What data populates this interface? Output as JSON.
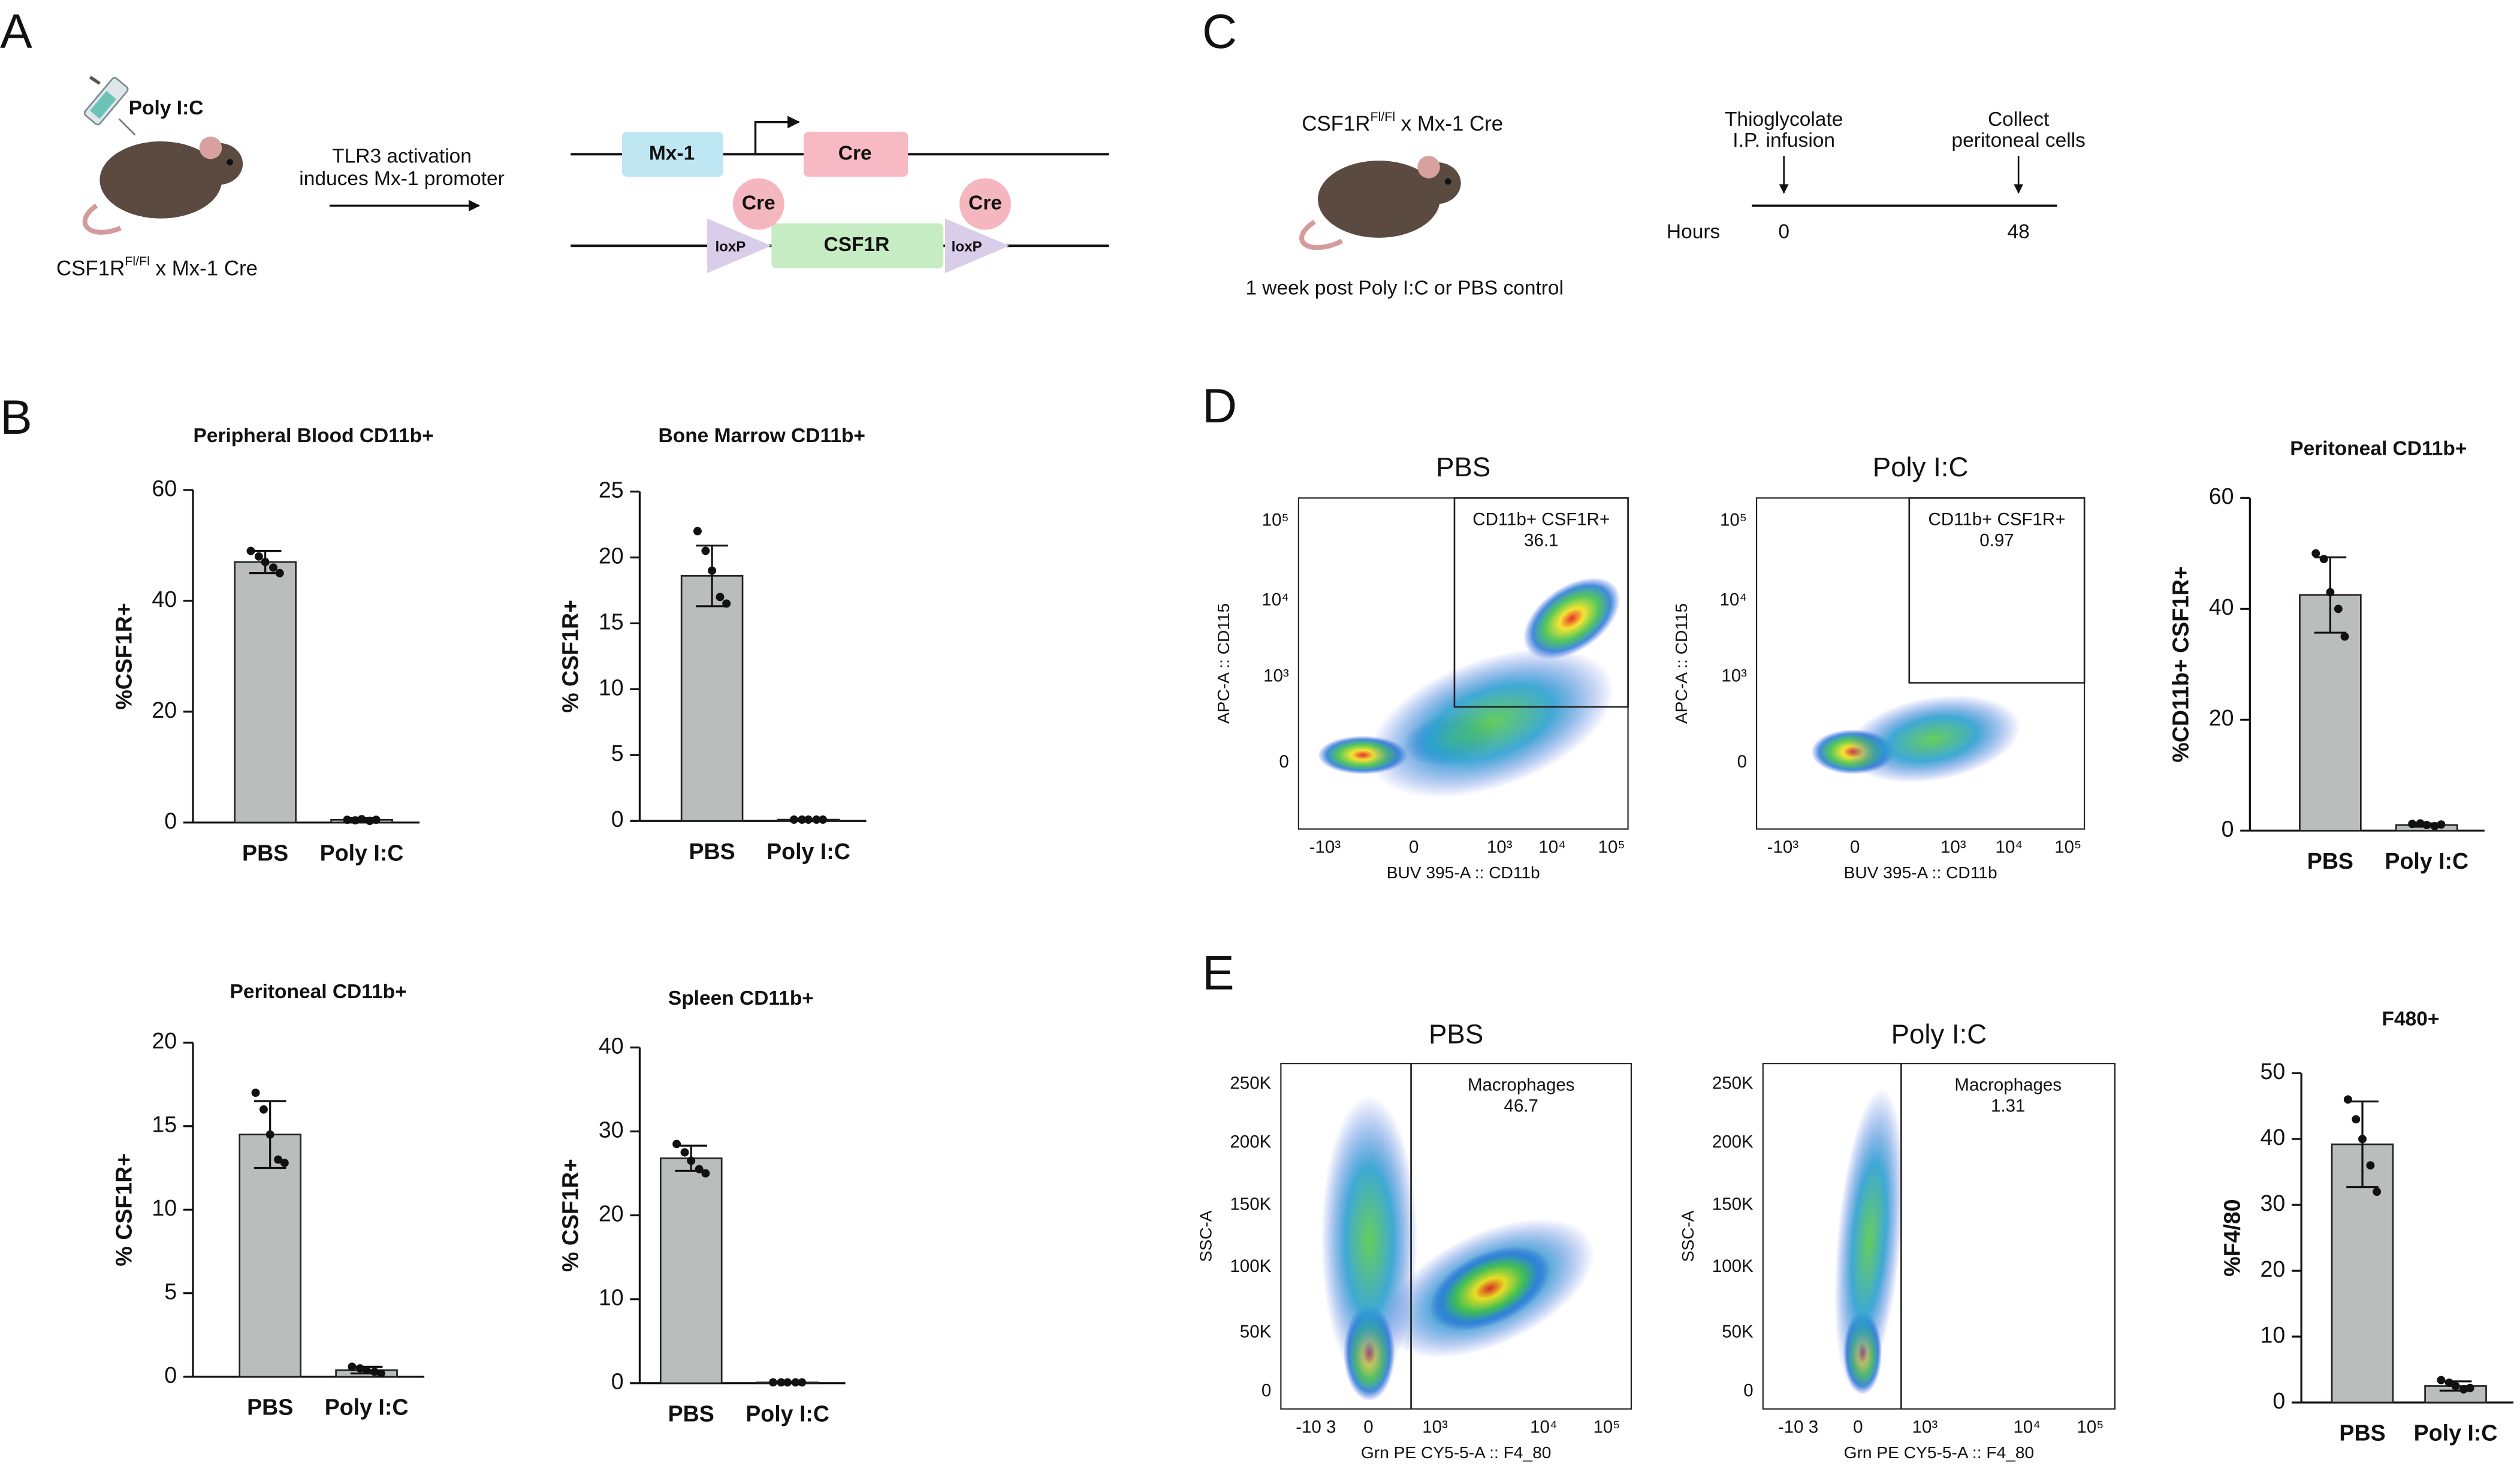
{
  "panel_labels": [
    "A",
    "B",
    "C",
    "D",
    "E"
  ],
  "panel_a": {
    "injection": "Poly I:C",
    "mouse_label": {
      "gene": "CSF1R",
      "superscript": "Fl/Fl",
      "rest": " x Mx-1 Cre"
    },
    "arrow_text": [
      "TLR3 activation",
      "induces Mx-1 promoter"
    ],
    "promoter": "Mx-1",
    "cre_gene": "Cre",
    "cre_proteins": [
      "Cre",
      "Cre"
    ],
    "loxp": [
      "loxP",
      "loxP"
    ],
    "target_gene": "CSF1R"
  },
  "panel_c": {
    "mouse_label": {
      "gene": "CSF1R",
      "superscript": "Fl/Fl",
      "rest": " x Mx-1 Cre"
    },
    "note": "1 week post Poly I:C  or PBS control",
    "timeline_label": "Hours",
    "events": [
      {
        "text": [
          "Thioglycolate",
          "I.P. infusion"
        ],
        "time": "0"
      },
      {
        "text": [
          "Collect",
          "peritoneal cells"
        ],
        "time": "48"
      }
    ]
  },
  "flow_plots": [
    {
      "title": "PBS",
      "gate_name": "CD11b+ CSF1R+",
      "gate_value": "36.1",
      "y_label": "APC-A :: CD115",
      "x_label": "BUV 395-A :: CD11b",
      "yticks": [
        "10⁵",
        "10⁴",
        "10³",
        "0"
      ],
      "xticks": [
        "-10³",
        "0",
        "10³",
        "10⁴",
        "10⁵"
      ]
    },
    {
      "title": "Poly I:C",
      "gate_name": "CD11b+ CSF1R+",
      "gate_value": "0.97",
      "y_label": "APC-A :: CD115",
      "x_label": "BUV 395-A :: CD11b",
      "yticks": [
        "10⁵",
        "10⁴",
        "10³",
        "0"
      ],
      "xticks": [
        "-10³",
        "0",
        "10³",
        "10⁴",
        "10⁵"
      ]
    },
    {
      "title": "PBS",
      "gate_name": "Macrophages",
      "gate_value": "46.7",
      "y_label": "SSC-A",
      "x_label": "Grn PE CY5-5-A :: F4_80",
      "yticks": [
        "250K",
        "200K",
        "150K",
        "100K",
        "50K",
        "0"
      ],
      "xticks": [
        "-10 3",
        "0",
        "10³",
        "10⁴",
        "10⁵"
      ]
    },
    {
      "title": "Poly I:C",
      "gate_name": "Macrophages",
      "gate_value": "1.31",
      "y_label": "SSC-A",
      "x_label": "Grn PE CY5-5-A :: F4_80",
      "yticks": [
        "250K",
        "200K",
        "150K",
        "100K",
        "50K",
        "0"
      ],
      "xticks": [
        "-10 3",
        "0",
        "10³",
        "10⁴",
        "10⁵"
      ]
    }
  ],
  "chart_data": [
    {
      "type": "bar",
      "title": "Peripheral Blood CD11b+",
      "y_label": "%CSF1R+",
      "categories": [
        "PBS",
        "Poly I:C"
      ],
      "values": [
        47,
        0.5
      ],
      "errors": [
        2,
        0.3
      ],
      "points": [
        [
          49,
          48,
          47,
          46,
          45
        ],
        [
          0.5,
          0.4,
          0.6,
          0.3,
          0.5
        ]
      ],
      "ylim": [
        0,
        60
      ],
      "yticks": [
        0,
        20,
        40,
        60
      ],
      "color": "#b9bdbc"
    },
    {
      "type": "bar",
      "title": "Bone Marrow CD11b+",
      "y_label": "% CSF1R+",
      "categories": [
        "PBS",
        "Poly I:C"
      ],
      "values": [
        18.6,
        0.1
      ],
      "errors": [
        2.3,
        0.05
      ],
      "points": [
        [
          22,
          20.5,
          19,
          17,
          16.5
        ],
        [
          0.1,
          0.1,
          0.1,
          0.1,
          0.1
        ]
      ],
      "ylim": [
        0,
        25
      ],
      "yticks": [
        0,
        5,
        10,
        15,
        20,
        25
      ],
      "color": "#b9bdbc"
    },
    {
      "type": "bar",
      "title": "Peritoneal CD11b+",
      "y_label": "% CSF1R+",
      "categories": [
        "PBS",
        "Poly I:C"
      ],
      "values": [
        14.5,
        0.4
      ],
      "errors": [
        2,
        0.2
      ],
      "points": [
        [
          17,
          16,
          14.5,
          13,
          12.8
        ],
        [
          0.6,
          0.5,
          0.4,
          0.3,
          0.2
        ]
      ],
      "ylim": [
        0,
        20
      ],
      "yticks": [
        0,
        5,
        10,
        15,
        20
      ],
      "color": "#b9bdbc"
    },
    {
      "type": "bar",
      "title": "Spleen CD11b+",
      "y_label": "% CSF1R+",
      "categories": [
        "PBS",
        "Poly I:C"
      ],
      "values": [
        26.8,
        0.1
      ],
      "errors": [
        1.5,
        0.05
      ],
      "points": [
        [
          28.5,
          27.5,
          26.5,
          25.5,
          25
        ],
        [
          0.1,
          0.1,
          0.1,
          0.1,
          0.1
        ]
      ],
      "ylim": [
        0,
        40
      ],
      "yticks": [
        0,
        10,
        20,
        30,
        40
      ],
      "color": "#b9bdbc"
    },
    {
      "type": "bar",
      "title": "Peritoneal CD11b+",
      "y_label": "%CD11b+ CSF1R+",
      "categories": [
        "PBS",
        "Poly I:C"
      ],
      "values": [
        42.5,
        1
      ],
      "errors": [
        6.8,
        0.3
      ],
      "points": [
        [
          50,
          49,
          43,
          40,
          35
        ],
        [
          1.2,
          1.3,
          1,
          0.8,
          1.1
        ]
      ],
      "ylim": [
        0,
        60
      ],
      "yticks": [
        0,
        20,
        40,
        60
      ],
      "color": "#b9bdbc"
    },
    {
      "type": "bar",
      "title": "F480+",
      "y_label": "%F4/80",
      "categories": [
        "PBS",
        "Poly I:C"
      ],
      "values": [
        39.2,
        2.5
      ],
      "errors": [
        6.5,
        0.7
      ],
      "points": [
        [
          46,
          43,
          40,
          36,
          32
        ],
        [
          3.4,
          3,
          2.5,
          2,
          2.2
        ]
      ],
      "ylim": [
        0,
        50
      ],
      "yticks": [
        0,
        10,
        20,
        30,
        40,
        50
      ],
      "color": "#b9bdbc"
    }
  ]
}
